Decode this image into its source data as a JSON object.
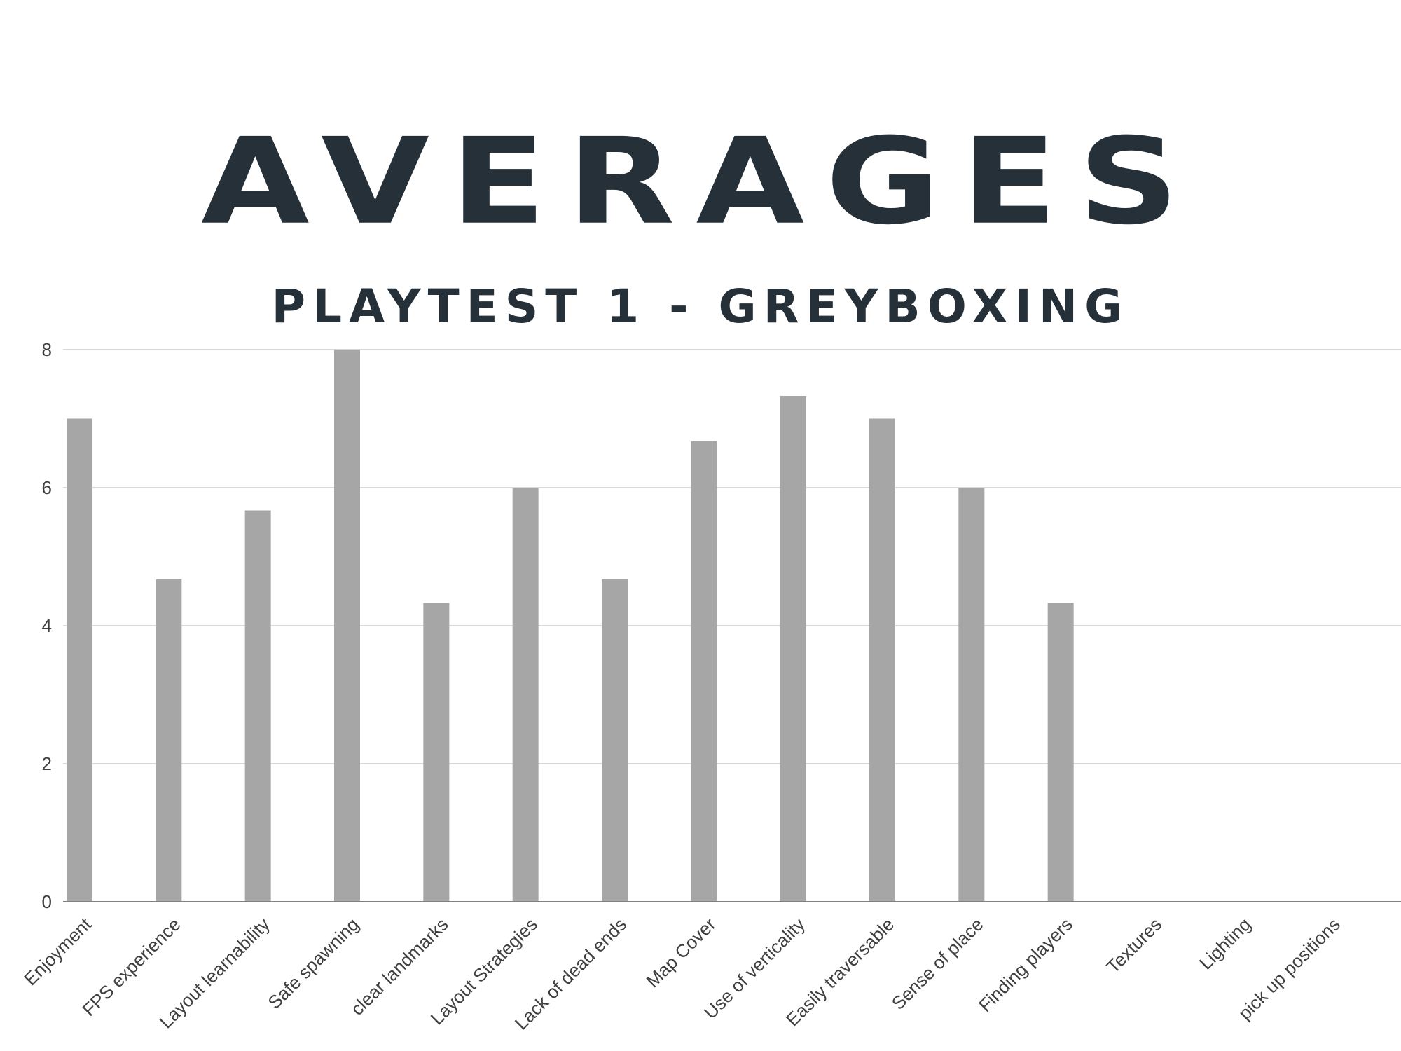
{
  "chart_data": {
    "type": "bar",
    "title": "AVERAGES",
    "subtitle": "PLAYTEST 1 - GREYBOXING",
    "xlabel": "",
    "ylabel": "",
    "ylim": [
      0,
      8
    ],
    "yticks": [
      0,
      2,
      4,
      6,
      8
    ],
    "grid": true,
    "categories": [
      "Enjoyment",
      "FPS experience",
      "Layout learnability",
      "Safe spawning",
      "clear landmarks",
      "Layout Strategies",
      "Lack of dead ends",
      "Map Cover",
      "Use of verticality",
      "Easily traversable",
      "Sense of place",
      "Finding players",
      "Textures",
      "Lighting",
      "pick up positions"
    ],
    "values": [
      7,
      4.67,
      5.67,
      8,
      4.33,
      6,
      4.67,
      6.67,
      7.33,
      7,
      6,
      4.33,
      0,
      0,
      0
    ],
    "bar_color": "#a6a6a6",
    "grid_color": "#d9d9d9",
    "axis_color": "#808080",
    "title_color": "#253039"
  }
}
